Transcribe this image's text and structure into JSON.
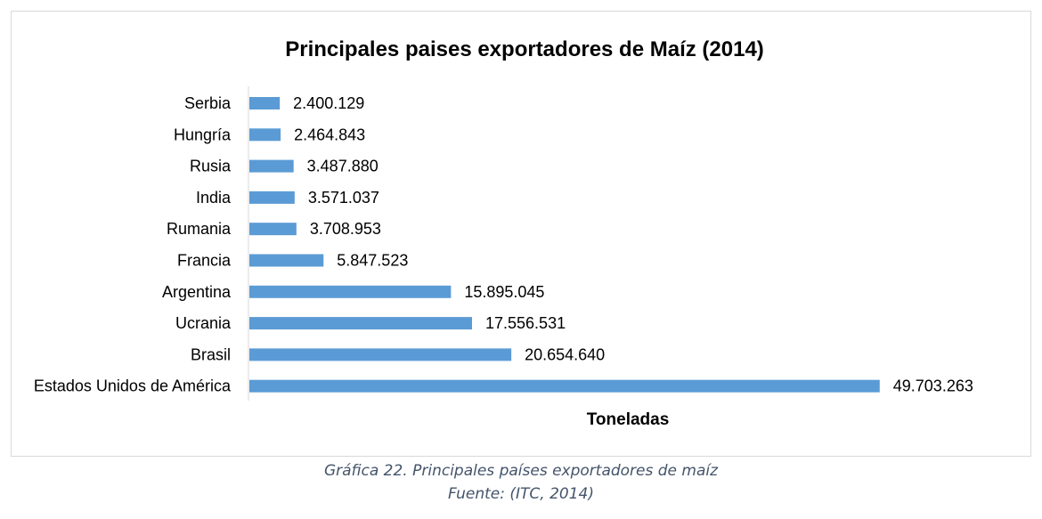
{
  "chart_data": {
    "type": "bar",
    "orientation": "horizontal",
    "title": "Principales paises exportadores de Maíz (2014)",
    "xlabel": "Toneladas",
    "ylabel": "",
    "categories": [
      "Serbia",
      "Hungría",
      "Rusia",
      "India",
      "Rumania",
      "Francia",
      "Argentina",
      "Ucrania",
      "Brasil",
      "Estados Unidos de América"
    ],
    "values": [
      2400129,
      2464843,
      3487880,
      3571037,
      3708953,
      5847523,
      15895045,
      17556531,
      20654640,
      49703263
    ],
    "data_labels": [
      "2.400.129",
      "2.464.843",
      "3.487.880",
      "3.571.037",
      "3.708.953",
      "5.847.523",
      "15.895.045",
      "17.556.531",
      "20.654.640",
      "49.703.263"
    ],
    "xlim": [
      0,
      50000000
    ],
    "bar_color": "#5b9bd5",
    "grid": false,
    "legend": "none"
  },
  "caption": {
    "line1": "Gráfica 22. Principales países exportadores de maíz",
    "line2": "Fuente: (ITC, 2014)"
  }
}
